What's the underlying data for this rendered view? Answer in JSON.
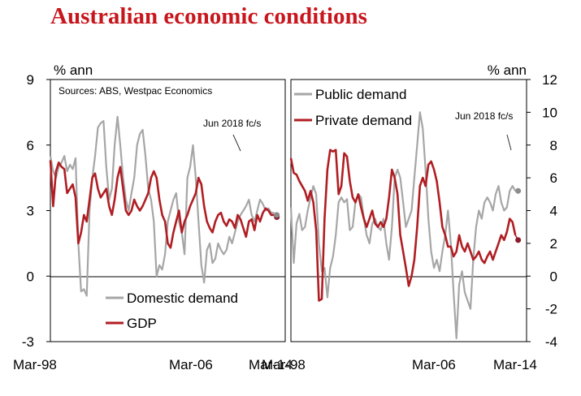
{
  "title": "Australian economic conditions",
  "colors": {
    "title": "#c8161d",
    "grey_series": "#a6a6a6",
    "red_series": "#b01e23",
    "forecast_marker_red": "#8b1a2b",
    "forecast_marker_grey": "#8c8c8c"
  },
  "chart_data": [
    {
      "type": "line",
      "panel": "left",
      "ylabel": "% ann",
      "ylim": [
        -3,
        9
      ],
      "yticks": [
        -3,
        0,
        3,
        6,
        9
      ],
      "xlim": [
        1998.0,
        2019.0
      ],
      "xticks": [
        1998.0,
        2006.0,
        2014.0
      ],
      "xtick_labels": [
        "Mar-98",
        "Mar-06",
        "Mar-14"
      ],
      "source": "Sources: ABS, Westpac Economics",
      "annotation": "Jun 2018 fc/s",
      "legend_position": "bottom-left",
      "series": [
        {
          "name": "Domestic demand",
          "color": "grey",
          "x": [
            1998.0,
            1998.25,
            1998.5,
            1998.75,
            1999.0,
            1999.25,
            1999.5,
            1999.75,
            2000.0,
            2000.25,
            2000.5,
            2000.75,
            2001.0,
            2001.25,
            2001.5,
            2001.75,
            2002.0,
            2002.25,
            2002.5,
            2002.75,
            2003.0,
            2003.25,
            2003.5,
            2003.75,
            2004.0,
            2004.25,
            2004.5,
            2004.75,
            2005.0,
            2005.25,
            2005.5,
            2005.75,
            2006.0,
            2006.25,
            2006.5,
            2006.75,
            2007.0,
            2007.25,
            2007.5,
            2007.75,
            2008.0,
            2008.25,
            2008.5,
            2008.75,
            2009.0,
            2009.25,
            2009.5,
            2009.75,
            2010.0,
            2010.25,
            2010.5,
            2010.75,
            2011.0,
            2011.25,
            2011.5,
            2011.75,
            2012.0,
            2012.25,
            2012.5,
            2012.75,
            2013.0,
            2013.25,
            2013.5,
            2013.75,
            2014.0,
            2014.25,
            2014.5,
            2014.75,
            2015.0,
            2015.25,
            2015.5,
            2015.75,
            2016.0,
            2016.25,
            2016.5,
            2016.75,
            2017.0,
            2017.25,
            2017.5,
            2017.75,
            2018.0
          ],
          "values": [
            5.5,
            4.8,
            4.5,
            5.0,
            5.2,
            5.5,
            4.8,
            5.1,
            4.9,
            5.4,
            1.5,
            -0.7,
            -0.6,
            -0.9,
            3.0,
            4.5,
            5.5,
            6.8,
            7.0,
            7.1,
            5.0,
            3.5,
            4.0,
            6.0,
            7.3,
            6.0,
            4.5,
            3.5,
            3.0,
            3.8,
            4.5,
            6.0,
            6.5,
            6.7,
            5.5,
            4.0,
            3.5,
            2.5,
            0.0,
            0.5,
            0.3,
            1.0,
            2.5,
            3.0,
            3.5,
            3.8,
            2.5,
            2.0,
            1.0,
            4.5,
            5.0,
            6.0,
            4.5,
            2.5,
            0.5,
            -0.3,
            1.2,
            1.5,
            0.6,
            0.8,
            1.5,
            1.2,
            1.0,
            1.2,
            1.8,
            1.5,
            2.0,
            2.5,
            2.8,
            3.0,
            3.2,
            3.5,
            2.8,
            2.5,
            3.0,
            3.5,
            3.3,
            3.0,
            3.1,
            2.9,
            2.9
          ]
        },
        {
          "name": "GDP",
          "color": "red",
          "x": [
            1998.0,
            1998.25,
            1998.5,
            1998.75,
            1999.0,
            1999.25,
            1999.5,
            1999.75,
            2000.0,
            2000.25,
            2000.5,
            2000.75,
            2001.0,
            2001.25,
            2001.5,
            2001.75,
            2002.0,
            2002.25,
            2002.5,
            2002.75,
            2003.0,
            2003.25,
            2003.5,
            2003.75,
            2004.0,
            2004.25,
            2004.5,
            2004.75,
            2005.0,
            2005.25,
            2005.5,
            2005.75,
            2006.0,
            2006.25,
            2006.5,
            2006.75,
            2007.0,
            2007.25,
            2007.5,
            2007.75,
            2008.0,
            2008.25,
            2008.5,
            2008.75,
            2009.0,
            2009.25,
            2009.5,
            2009.75,
            2010.0,
            2010.25,
            2010.5,
            2010.75,
            2011.0,
            2011.25,
            2011.5,
            2011.75,
            2012.0,
            2012.25,
            2012.5,
            2012.75,
            2013.0,
            2013.25,
            2013.5,
            2013.75,
            2014.0,
            2014.25,
            2014.5,
            2014.75,
            2015.0,
            2015.25,
            2015.5,
            2015.75,
            2016.0,
            2016.25,
            2016.5,
            2016.75,
            2017.0,
            2017.25,
            2017.5,
            2017.75,
            2018.0
          ],
          "values": [
            5.3,
            3.2,
            4.8,
            5.2,
            5.0,
            4.9,
            3.8,
            4.0,
            4.2,
            3.6,
            1.5,
            2.0,
            2.8,
            2.5,
            3.5,
            4.5,
            4.7,
            4.0,
            3.6,
            3.8,
            4.0,
            3.2,
            2.8,
            3.5,
            4.5,
            5.0,
            4.0,
            3.0,
            2.8,
            3.0,
            3.5,
            3.2,
            3.0,
            3.2,
            3.5,
            3.8,
            4.5,
            4.8,
            4.5,
            3.5,
            2.8,
            2.5,
            1.5,
            1.3,
            2.0,
            2.5,
            3.0,
            2.0,
            2.5,
            2.8,
            3.2,
            3.5,
            3.8,
            4.5,
            4.2,
            3.2,
            2.5,
            2.2,
            2.0,
            2.5,
            2.8,
            2.9,
            2.5,
            2.3,
            2.6,
            2.5,
            2.2,
            2.8,
            2.6,
            2.2,
            1.8,
            2.5,
            2.6,
            2.1,
            2.8,
            2.5,
            2.9,
            3.1,
            3.0,
            2.8,
            2.8
          ]
        }
      ],
      "forecast_markers": [
        {
          "series": "GDP",
          "x": 2018.25,
          "value": 2.7
        },
        {
          "series": "Domestic demand",
          "x": 2018.25,
          "value": 2.8
        }
      ]
    },
    {
      "type": "line",
      "panel": "right",
      "ylabel": "% ann",
      "ylim": [
        -4,
        12
      ],
      "yticks": [
        -4,
        -2,
        0,
        2,
        4,
        6,
        8,
        10,
        12
      ],
      "xlim": [
        1998.0,
        2019.0
      ],
      "xticks": [
        1998.0,
        2006.0,
        2014.0
      ],
      "xtick_labels": [
        "Mar-98",
        "Mar-06",
        "Mar-14"
      ],
      "annotation": "Jun 2018 fc/s",
      "legend_position": "top-left",
      "series": [
        {
          "name": "Public demand",
          "color": "grey",
          "x": [
            1998.0,
            1998.25,
            1998.5,
            1998.75,
            1999.0,
            1999.25,
            1999.5,
            1999.75,
            2000.0,
            2000.25,
            2000.5,
            2000.75,
            2001.0,
            2001.25,
            2001.5,
            2001.75,
            2002.0,
            2002.25,
            2002.5,
            2002.75,
            2003.0,
            2003.25,
            2003.5,
            2003.75,
            2004.0,
            2004.25,
            2004.5,
            2004.75,
            2005.0,
            2005.25,
            2005.5,
            2005.75,
            2006.0,
            2006.25,
            2006.5,
            2006.75,
            2007.0,
            2007.25,
            2007.5,
            2007.75,
            2008.0,
            2008.25,
            2008.5,
            2008.75,
            2009.0,
            2009.25,
            2009.5,
            2009.75,
            2010.0,
            2010.25,
            2010.5,
            2010.75,
            2011.0,
            2011.25,
            2011.5,
            2011.75,
            2012.0,
            2012.25,
            2012.5,
            2012.75,
            2013.0,
            2013.25,
            2013.5,
            2013.75,
            2014.0,
            2014.25,
            2014.5,
            2014.75,
            2015.0,
            2015.25,
            2015.5,
            2015.75,
            2016.0,
            2016.25,
            2016.5,
            2016.75,
            2017.0,
            2017.25,
            2017.5,
            2017.75,
            2018.0
          ],
          "values": [
            4.2,
            0.8,
            3.2,
            3.8,
            2.8,
            3.0,
            4.0,
            4.8,
            5.5,
            5.0,
            2.0,
            0.3,
            0.5,
            -1.3,
            0.5,
            1.2,
            2.5,
            4.5,
            4.8,
            4.5,
            4.7,
            2.8,
            3.0,
            4.5,
            5.0,
            4.8,
            3.5,
            2.5,
            2.0,
            3.2,
            3.5,
            3.0,
            2.8,
            3.5,
            2.0,
            1.0,
            3.0,
            6.0,
            6.5,
            6.0,
            4.5,
            3.0,
            3.5,
            4.0,
            6.0,
            8.0,
            10.0,
            9.0,
            6.5,
            3.5,
            1.5,
            0.5,
            1.0,
            0.3,
            1.5,
            2.5,
            4.0,
            2.0,
            -1.0,
            -3.8,
            -0.5,
            0.3,
            -1.0,
            -1.5,
            -2.0,
            1.0,
            3.0,
            4.0,
            3.5,
            4.5,
            4.8,
            4.5,
            4.0,
            5.0,
            5.5,
            4.5,
            4.0,
            4.2,
            5.2,
            5.5,
            5.2
          ]
        },
        {
          "name": "Private demand",
          "color": "red",
          "x": [
            1998.0,
            1998.25,
            1998.5,
            1998.75,
            1999.0,
            1999.25,
            1999.5,
            1999.75,
            2000.0,
            2000.25,
            2000.5,
            2000.75,
            2001.0,
            2001.25,
            2001.5,
            2001.75,
            2002.0,
            2002.25,
            2002.5,
            2002.75,
            2003.0,
            2003.25,
            2003.5,
            2003.75,
            2004.0,
            2004.25,
            2004.5,
            2004.75,
            2005.0,
            2005.25,
            2005.5,
            2005.75,
            2006.0,
            2006.25,
            2006.5,
            2006.75,
            2007.0,
            2007.25,
            2007.5,
            2007.75,
            2008.0,
            2008.25,
            2008.5,
            2008.75,
            2009.0,
            2009.25,
            2009.5,
            2009.75,
            2010.0,
            2010.25,
            2010.5,
            2010.75,
            2011.0,
            2011.25,
            2011.5,
            2011.75,
            2012.0,
            2012.25,
            2012.5,
            2012.75,
            2013.0,
            2013.25,
            2013.5,
            2013.75,
            2014.0,
            2014.25,
            2014.5,
            2014.75,
            2015.0,
            2015.25,
            2015.5,
            2015.75,
            2016.0,
            2016.25,
            2016.5,
            2016.75,
            2017.0,
            2017.25,
            2017.5,
            2017.75,
            2018.0
          ],
          "values": [
            7.2,
            6.3,
            6.2,
            5.8,
            5.5,
            5.2,
            4.6,
            5.2,
            4.5,
            2.8,
            -1.5,
            -1.4,
            3.5,
            6.5,
            7.7,
            7.6,
            7.7,
            5.0,
            5.5,
            7.5,
            7.3,
            5.8,
            4.8,
            4.5,
            5.0,
            4.2,
            3.5,
            3.0,
            3.5,
            4.0,
            3.2,
            3.0,
            3.3,
            3.0,
            3.5,
            4.8,
            6.5,
            6.0,
            5.0,
            2.5,
            1.5,
            0.5,
            -0.6,
            0.0,
            1.0,
            3.0,
            5.5,
            6.0,
            5.5,
            6.8,
            7.0,
            6.5,
            5.8,
            4.5,
            3.0,
            2.5,
            1.8,
            1.8,
            1.2,
            1.5,
            2.5,
            1.8,
            1.5,
            2.0,
            1.5,
            1.0,
            1.2,
            1.5,
            1.0,
            0.8,
            1.2,
            1.5,
            1.0,
            1.5,
            2.0,
            2.5,
            2.2,
            2.7,
            3.5,
            3.3,
            2.5
          ]
        }
      ],
      "forecast_markers": [
        {
          "series": "Private demand",
          "x": 2018.25,
          "value": 2.2
        },
        {
          "series": "Public demand",
          "x": 2018.25,
          "value": 5.2
        }
      ]
    }
  ]
}
